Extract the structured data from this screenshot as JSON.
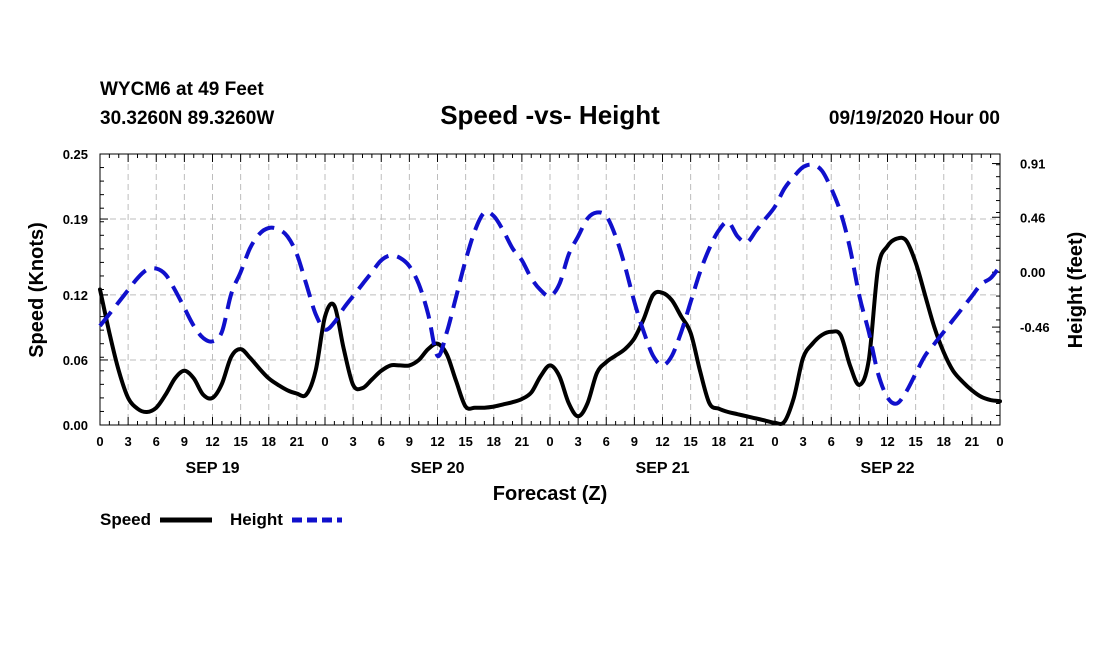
{
  "chart_data": {
    "type": "line",
    "title": "Speed -vs- Height",
    "station_line": "WYCM6 at 49 Feet",
    "coords_line": "30.3260N 89.3260W",
    "run_line": "09/19/2020 Hour 00",
    "xlabel": "Forecast (Z)",
    "ylabel_left": "Speed (Knots)",
    "ylabel_right": "Height (feet)",
    "x_range_hours": [
      0,
      96
    ],
    "x_tick_hours": [
      0,
      3,
      6,
      9,
      12,
      15,
      18,
      21,
      24,
      27,
      30,
      33,
      36,
      39,
      42,
      45,
      48,
      51,
      54,
      57,
      60,
      63,
      66,
      69,
      72,
      75,
      78,
      81,
      84,
      87,
      90,
      93,
      96
    ],
    "x_tick_labels": [
      "0",
      "3",
      "6",
      "9",
      "12",
      "15",
      "18",
      "21",
      "0",
      "3",
      "6",
      "9",
      "12",
      "15",
      "18",
      "21",
      "0",
      "3",
      "6",
      "9",
      "12",
      "15",
      "18",
      "21",
      "0",
      "3",
      "6",
      "9",
      "12",
      "15",
      "18",
      "21",
      "0"
    ],
    "day_labels": [
      {
        "label": "SEP 19",
        "hour": 12
      },
      {
        "label": "SEP 20",
        "hour": 36
      },
      {
        "label": "SEP 21",
        "hour": 60
      },
      {
        "label": "SEP 22",
        "hour": 84
      }
    ],
    "y_left": {
      "range": [
        0,
        0.25
      ],
      "ticks": [
        0,
        0.06,
        0.12,
        0.19,
        0.25
      ],
      "tick_labels": [
        "0.00",
        "0.06",
        "0.12",
        "0.19",
        "0.25"
      ]
    },
    "y_right": {
      "range": [
        -1.28,
        0.99
      ],
      "ticks": [
        -0.46,
        0.0,
        0.46,
        0.91
      ],
      "tick_labels": [
        "-0.46",
        "0.00",
        "0.46",
        "0.91"
      ]
    },
    "legend": [
      {
        "name": "Speed",
        "color": "#000000",
        "style": "solid"
      },
      {
        "name": "Height",
        "color": "#1010cc",
        "style": "dashed"
      }
    ],
    "series": [
      {
        "name": "Speed",
        "axis": "left",
        "color": "#000000",
        "x": [
          0,
          1,
          2,
          3,
          4,
          5,
          6,
          7,
          8,
          9,
          10,
          11,
          12,
          13,
          14,
          15,
          16,
          17,
          18,
          19,
          20,
          21,
          22,
          23,
          24,
          25,
          26,
          27,
          28,
          29,
          30,
          31,
          32,
          33,
          34,
          35,
          36,
          37,
          38,
          39,
          40,
          41,
          42,
          43,
          44,
          45,
          46,
          47,
          48,
          49,
          50,
          51,
          52,
          53,
          54,
          55,
          56,
          57,
          58,
          59,
          60,
          61,
          62,
          63,
          64,
          65,
          66,
          67,
          68,
          69,
          70,
          71,
          72,
          73,
          74,
          75,
          76,
          77,
          78,
          79,
          80,
          81,
          82,
          83,
          84,
          85,
          86,
          87,
          88,
          89,
          90,
          91,
          92,
          93,
          94,
          95,
          96
        ],
        "values": [
          0.125,
          0.085,
          0.05,
          0.025,
          0.015,
          0.012,
          0.016,
          0.028,
          0.043,
          0.05,
          0.043,
          0.028,
          0.025,
          0.038,
          0.063,
          0.07,
          0.062,
          0.052,
          0.043,
          0.037,
          0.032,
          0.029,
          0.028,
          0.05,
          0.1,
          0.11,
          0.07,
          0.037,
          0.034,
          0.042,
          0.05,
          0.055,
          0.055,
          0.055,
          0.06,
          0.07,
          0.075,
          0.065,
          0.04,
          0.017,
          0.016,
          0.016,
          0.017,
          0.019,
          0.021,
          0.024,
          0.03,
          0.045,
          0.055,
          0.045,
          0.02,
          0.008,
          0.02,
          0.048,
          0.058,
          0.064,
          0.07,
          0.08,
          0.098,
          0.12,
          0.122,
          0.115,
          0.1,
          0.085,
          0.05,
          0.02,
          0.015,
          0.012,
          0.01,
          0.008,
          0.006,
          0.004,
          0.002,
          0.003,
          0.025,
          0.062,
          0.075,
          0.083,
          0.086,
          0.083,
          0.055,
          0.037,
          0.06,
          0.145,
          0.165,
          0.172,
          0.17,
          0.15,
          0.12,
          0.09,
          0.067,
          0.05,
          0.04,
          0.032,
          0.026,
          0.023,
          0.022
        ]
      },
      {
        "name": "Height",
        "axis": "right",
        "color": "#1010cc",
        "x": [
          0,
          1,
          2,
          3,
          4,
          5,
          6,
          7,
          8,
          9,
          10,
          11,
          12,
          13,
          14,
          15,
          16,
          17,
          18,
          19,
          20,
          21,
          22,
          23,
          24,
          25,
          26,
          27,
          28,
          29,
          30,
          31,
          32,
          33,
          34,
          35,
          36,
          37,
          38,
          39,
          40,
          41,
          42,
          43,
          44,
          45,
          46,
          47,
          48,
          49,
          50,
          51,
          52,
          53,
          54,
          55,
          56,
          57,
          58,
          59,
          60,
          61,
          62,
          63,
          64,
          65,
          66,
          67,
          68,
          69,
          70,
          71,
          72,
          73,
          74,
          75,
          76,
          77,
          78,
          79,
          80,
          81,
          82,
          83,
          84,
          85,
          86,
          87,
          88,
          89,
          90,
          91,
          92,
          93,
          94,
          95,
          96
        ],
        "values": [
          -0.45,
          -0.35,
          -0.25,
          -0.15,
          -0.05,
          0.02,
          0.03,
          -0.02,
          -0.15,
          -0.3,
          -0.45,
          -0.55,
          -0.58,
          -0.5,
          -0.18,
          0.0,
          0.2,
          0.32,
          0.37,
          0.36,
          0.3,
          0.15,
          -0.1,
          -0.35,
          -0.48,
          -0.42,
          -0.3,
          -0.2,
          -0.1,
          0.0,
          0.1,
          0.14,
          0.12,
          0.05,
          -0.1,
          -0.35,
          -0.7,
          -0.5,
          -0.2,
          0.1,
          0.35,
          0.5,
          0.47,
          0.35,
          0.2,
          0.1,
          -0.05,
          -0.15,
          -0.2,
          -0.1,
          0.15,
          0.3,
          0.45,
          0.5,
          0.47,
          0.3,
          0.05,
          -0.25,
          -0.5,
          -0.7,
          -0.78,
          -0.7,
          -0.5,
          -0.25,
          0.0,
          0.2,
          0.35,
          0.42,
          0.3,
          0.25,
          0.35,
          0.45,
          0.55,
          0.7,
          0.8,
          0.88,
          0.9,
          0.85,
          0.7,
          0.5,
          0.2,
          -0.2,
          -0.5,
          -0.85,
          -1.05,
          -1.1,
          -1.0,
          -0.85,
          -0.7,
          -0.6,
          -0.5,
          -0.4,
          -0.3,
          -0.2,
          -0.1,
          -0.05,
          0.05
        ]
      }
    ]
  }
}
